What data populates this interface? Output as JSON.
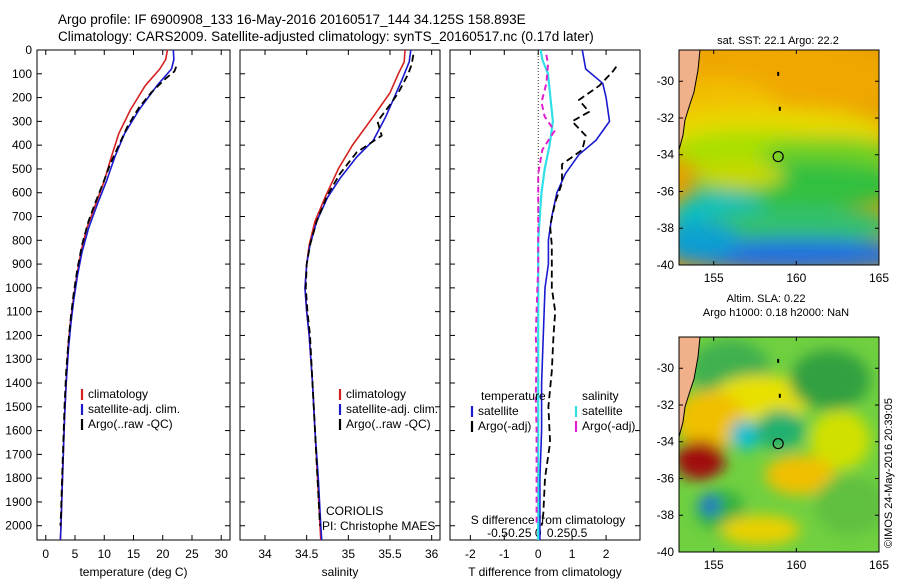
{
  "header": {
    "line1": "Argo profile: IF 6900908_133 16-May-2016 20160517_144 34.125S 158.893E",
    "line2": "Climatology: CARS2009. Satellite-adjusted climatology: synTS_20160517.nc (0.17d later)"
  },
  "colors": {
    "climatology": "#d42020",
    "satellite": "#1a1ad0",
    "argo": "#000000",
    "sal_satellite": "#30e0e8",
    "sal_argo": "#e020d0"
  },
  "depth_axis": {
    "ticks": [
      "0",
      "100",
      "200",
      "300",
      "400",
      "500",
      "600",
      "700",
      "800",
      "900",
      "1000",
      "1100",
      "1200",
      "1300",
      "1400",
      "1500",
      "1600",
      "1700",
      "1800",
      "1900",
      "2000"
    ],
    "ylim": [
      0,
      2060
    ]
  },
  "chart_data": [
    {
      "type": "line",
      "id": "temperature",
      "xlabel": "temperature (deg C)",
      "xlim": [
        -1.5,
        31.5
      ],
      "xticks": [
        "0",
        "5",
        "10",
        "15",
        "20",
        "25",
        "30"
      ],
      "xtick_values": [
        0,
        5,
        10,
        15,
        20,
        25,
        30
      ],
      "legend": [
        "climatology",
        "satellite-adj. clim.",
        "Argo(..raw -QC)"
      ],
      "series": [
        {
          "name": "climatology",
          "style": "climatology",
          "values": [
            [
              20.8,
              0
            ],
            [
              20.5,
              40
            ],
            [
              19.5,
              80
            ],
            [
              17.0,
              150
            ],
            [
              14.5,
              250
            ],
            [
              12.5,
              350
            ],
            [
              11.2,
              450
            ],
            [
              10.0,
              550
            ],
            [
              8.5,
              650
            ],
            [
              7.0,
              750
            ],
            [
              6.0,
              850
            ],
            [
              5.3,
              950
            ],
            [
              4.7,
              1050
            ],
            [
              4.2,
              1150
            ],
            [
              3.8,
              1250
            ],
            [
              3.5,
              1400
            ],
            [
              3.2,
              1550
            ],
            [
              3.0,
              1700
            ],
            [
              2.8,
              1850
            ],
            [
              2.6,
              2000
            ],
            [
              2.5,
              2060
            ]
          ]
        },
        {
          "name": "satellite-adj. clim.",
          "style": "satellite",
          "values": [
            [
              21.8,
              0
            ],
            [
              21.9,
              40
            ],
            [
              21.5,
              80
            ],
            [
              19.0,
              150
            ],
            [
              16.0,
              250
            ],
            [
              13.5,
              350
            ],
            [
              11.8,
              450
            ],
            [
              10.4,
              550
            ],
            [
              8.8,
              650
            ],
            [
              7.3,
              750
            ],
            [
              6.2,
              850
            ],
            [
              5.4,
              950
            ],
            [
              4.8,
              1050
            ],
            [
              4.3,
              1150
            ],
            [
              3.9,
              1250
            ],
            [
              3.5,
              1400
            ],
            [
              3.2,
              1550
            ],
            [
              3.0,
              1700
            ],
            [
              2.8,
              1850
            ],
            [
              2.6,
              2000
            ],
            [
              2.5,
              2060
            ]
          ]
        },
        {
          "name": "Argo(..raw -QC)",
          "style": "argo",
          "values": [
            [
              22.3,
              70
            ],
            [
              22.0,
              90
            ],
            [
              20.5,
              120
            ],
            [
              18.0,
              180
            ],
            [
              16.0,
              240
            ],
            [
              14.0,
              320
            ],
            [
              12.5,
              400
            ],
            [
              11.0,
              480
            ],
            [
              9.8,
              560
            ],
            [
              8.5,
              640
            ],
            [
              7.3,
              720
            ],
            [
              6.2,
              820
            ],
            [
              5.4,
              920
            ],
            [
              4.8,
              1020
            ],
            [
              4.3,
              1120
            ],
            [
              3.9,
              1220
            ],
            [
              3.5,
              1350
            ],
            [
              3.2,
              1500
            ],
            [
              3.0,
              1650
            ],
            [
              2.8,
              1800
            ],
            [
              2.6,
              1950
            ],
            [
              2.5,
              2000
            ]
          ]
        }
      ]
    },
    {
      "type": "line",
      "id": "salinity",
      "xlabel": "salinity",
      "xlim": [
        33.7,
        36.1
      ],
      "xticks": [
        "34",
        "34.5",
        "35",
        "35.5",
        "36"
      ],
      "xtick_values": [
        34,
        34.5,
        35,
        35.5,
        36
      ],
      "legend": [
        "climatology",
        "satellite-adj. clim.",
        "Argo(..raw -QC)"
      ],
      "annotation": [
        "CORIOLIS",
        "PI: Christophe MAES"
      ],
      "series": [
        {
          "name": "climatology",
          "style": "climatology",
          "values": [
            [
              35.68,
              0
            ],
            [
              35.67,
              50
            ],
            [
              35.6,
              100
            ],
            [
              35.5,
              180
            ],
            [
              35.3,
              280
            ],
            [
              35.05,
              400
            ],
            [
              34.88,
              500
            ],
            [
              34.72,
              620
            ],
            [
              34.6,
              720
            ],
            [
              34.53,
              820
            ],
            [
              34.5,
              900
            ],
            [
              34.48,
              1000
            ],
            [
              34.5,
              1100
            ],
            [
              34.53,
              1200
            ],
            [
              34.57,
              1400
            ],
            [
              34.6,
              1600
            ],
            [
              34.63,
              1800
            ],
            [
              34.66,
              2000
            ],
            [
              34.67,
              2060
            ]
          ]
        },
        {
          "name": "satellite-adj. clim.",
          "style": "satellite",
          "values": [
            [
              35.75,
              0
            ],
            [
              35.73,
              50
            ],
            [
              35.65,
              120
            ],
            [
              35.55,
              200
            ],
            [
              35.45,
              280
            ],
            [
              35.3,
              380
            ],
            [
              35.1,
              450
            ],
            [
              34.9,
              540
            ],
            [
              34.75,
              620
            ],
            [
              34.62,
              720
            ],
            [
              34.54,
              820
            ],
            [
              34.5,
              900
            ],
            [
              34.48,
              1000
            ],
            [
              34.5,
              1100
            ],
            [
              34.53,
              1200
            ],
            [
              34.57,
              1400
            ],
            [
              34.6,
              1600
            ],
            [
              34.64,
              1800
            ],
            [
              34.67,
              2000
            ],
            [
              34.68,
              2060
            ]
          ]
        },
        {
          "name": "Argo(..raw -QC)",
          "style": "argo",
          "values": [
            [
              35.78,
              20
            ],
            [
              35.76,
              60
            ],
            [
              35.72,
              100
            ],
            [
              35.6,
              180
            ],
            [
              35.48,
              240
            ],
            [
              35.35,
              300
            ],
            [
              35.4,
              360
            ],
            [
              35.1,
              430
            ],
            [
              34.9,
              520
            ],
            [
              34.75,
              610
            ],
            [
              34.62,
              720
            ],
            [
              34.54,
              820
            ],
            [
              34.5,
              900
            ],
            [
              34.49,
              1000
            ],
            [
              34.51,
              1100
            ],
            [
              34.54,
              1200
            ],
            [
              34.57,
              1400
            ],
            [
              34.6,
              1600
            ],
            [
              34.63,
              1800
            ],
            [
              34.66,
              2000
            ]
          ]
        }
      ]
    },
    {
      "type": "line",
      "id": "differences",
      "xlabel": "T difference from climatology",
      "xlabel2": "S difference from climatology",
      "xlim": [
        -2.6,
        3.0
      ],
      "xticks": [
        "-2",
        "-1",
        "0",
        "1",
        "2"
      ],
      "xtick_values": [
        -2,
        -1,
        0,
        1,
        2
      ],
      "xticks_s": [
        "-0.5",
        "-0.25",
        "0",
        "0.25",
        "0.5"
      ],
      "xtick_s_values": [
        -0.5,
        -0.25,
        0,
        0.25,
        0.5
      ],
      "legend_t_title": "temperature",
      "legend_s_title": "salinity",
      "legend_t": [
        "satellite",
        "Argo(-adj)"
      ],
      "legend_s": [
        "satellite",
        "Argo(-adj)"
      ],
      "series": [
        {
          "name": "T satellite",
          "style": "satellite",
          "values": [
            [
              1.3,
              0
            ],
            [
              1.4,
              80
            ],
            [
              1.9,
              140
            ],
            [
              2.0,
              200
            ],
            [
              2.1,
              300
            ],
            [
              1.7,
              380
            ],
            [
              1.2,
              440
            ],
            [
              0.8,
              520
            ],
            [
              0.55,
              600
            ],
            [
              0.4,
              700
            ],
            [
              0.3,
              800
            ],
            [
              0.3,
              900
            ],
            [
              0.2,
              1000
            ],
            [
              0.15,
              1200
            ],
            [
              0.1,
              1400
            ],
            [
              0.1,
              1600
            ],
            [
              0.05,
              1800
            ],
            [
              0.05,
              2000
            ],
            [
              0.05,
              2060
            ]
          ]
        },
        {
          "name": "T Argo(-adj)",
          "style": "argo",
          "values": [
            [
              2.3,
              70
            ],
            [
              2.2,
              90
            ],
            [
              1.8,
              150
            ],
            [
              1.2,
              210
            ],
            [
              1.5,
              260
            ],
            [
              1.0,
              300
            ],
            [
              1.4,
              360
            ],
            [
              1.3,
              420
            ],
            [
              0.7,
              480
            ],
            [
              0.7,
              560
            ],
            [
              0.5,
              640
            ],
            [
              0.35,
              740
            ],
            [
              0.4,
              820
            ],
            [
              0.4,
              920
            ],
            [
              0.4,
              1000
            ],
            [
              0.5,
              1100
            ],
            [
              0.45,
              1200
            ],
            [
              0.4,
              1350
            ],
            [
              0.3,
              1500
            ],
            [
              0.35,
              1650
            ],
            [
              0.2,
              1800
            ],
            [
              0.15,
              1950
            ],
            [
              0.1,
              2000
            ]
          ]
        },
        {
          "name": "S satellite",
          "style": "sal_satellite",
          "values": [
            [
              0.03,
              0
            ],
            [
              0.05,
              40
            ],
            [
              0.12,
              100
            ],
            [
              0.15,
              200
            ],
            [
              0.18,
              300
            ],
            [
              0.14,
              400
            ],
            [
              0.08,
              500
            ],
            [
              0.04,
              600
            ],
            [
              0.02,
              700
            ],
            [
              0.0,
              800
            ],
            [
              0.0,
              900
            ],
            [
              0.0,
              1000
            ],
            [
              0.0,
              1200
            ],
            [
              0.0,
              1400
            ],
            [
              0.0,
              1600
            ],
            [
              0.0,
              1800
            ],
            [
              0.0,
              2000
            ],
            [
              0.0,
              2060
            ]
          ]
        },
        {
          "name": "S Argo(-adj)",
          "style": "sal_argo",
          "values": [
            [
              0.1,
              20
            ],
            [
              0.12,
              60
            ],
            [
              0.1,
              140
            ],
            [
              0.04,
              220
            ],
            [
              0.08,
              280
            ],
            [
              0.2,
              340
            ],
            [
              0.05,
              420
            ],
            [
              0.0,
              520
            ],
            [
              0.0,
              620
            ],
            [
              0.0,
              720
            ],
            [
              0.0,
              820
            ],
            [
              0.0,
              920
            ],
            [
              -0.01,
              1000
            ],
            [
              -0.02,
              1100
            ],
            [
              -0.03,
              1200
            ],
            [
              -0.02,
              1300
            ],
            [
              -0.03,
              1450
            ],
            [
              -0.02,
              1600
            ],
            [
              -0.02,
              1800
            ],
            [
              -0.02,
              2000
            ]
          ]
        }
      ]
    }
  ],
  "maps": {
    "top": {
      "title": "sat. SST: 22.1 Argo: 22.2",
      "yticks": [
        "-30",
        "-32",
        "-34",
        "-36",
        "-38",
        "-40"
      ],
      "ytick_values": [
        -30,
        -32,
        -34,
        -36,
        -38,
        -40
      ],
      "xticks": [
        "155",
        "160",
        "165"
      ],
      "xtick_values": [
        155,
        160,
        165
      ],
      "lat_range": [
        -40,
        -28.3
      ],
      "lon_range": [
        152.9,
        165
      ],
      "point": {
        "lon": 158.9,
        "lat": -34.1
      }
    },
    "bottom": {
      "title1": "Altim. SLA: 0.22",
      "title2": "Argo h1000: 0.18 h2000: NaN",
      "yticks": [
        "-30",
        "-32",
        "-34",
        "-36",
        "-38",
        "-40"
      ],
      "ytick_values": [
        -30,
        -32,
        -34,
        -36,
        -38,
        -40
      ],
      "xticks": [
        "155",
        "160",
        "165"
      ],
      "xtick_values": [
        155,
        160,
        165
      ],
      "lat_range": [
        -40,
        -28.3
      ],
      "lon_range": [
        152.9,
        165
      ],
      "point": {
        "lon": 158.9,
        "lat": -34.1
      }
    }
  },
  "footer": {
    "imos": "©IMOS 24-May-2016 20:39:05"
  }
}
